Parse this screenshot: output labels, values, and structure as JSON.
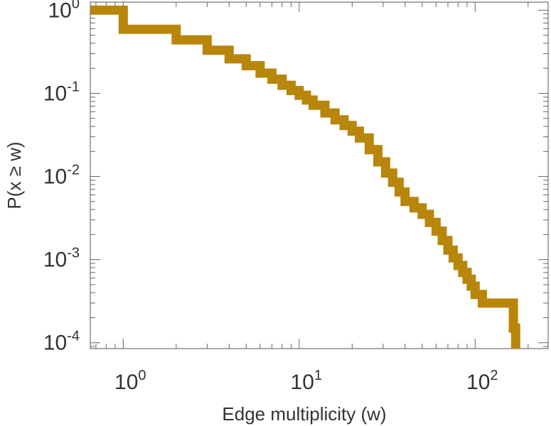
{
  "chart_data": {
    "type": "line",
    "step": true,
    "xscale": "log",
    "yscale": "log",
    "xlim": [
      0.65,
      260
    ],
    "ylim": [
      8.5e-05,
      1.25
    ],
    "xlabel": "Edge multiplicity (w)",
    "ylabel": "P(x ≥ w)",
    "x_ticks": [
      {
        "value": 1,
        "base": "10",
        "exp": "0"
      },
      {
        "value": 10,
        "base": "10",
        "exp": "1"
      },
      {
        "value": 100,
        "base": "10",
        "exp": "2"
      }
    ],
    "y_ticks": [
      {
        "value": 1,
        "base": "10",
        "exp": "0"
      },
      {
        "value": 0.1,
        "base": "10",
        "exp": "-1"
      },
      {
        "value": 0.01,
        "base": "10",
        "exp": "-2"
      },
      {
        "value": 0.001,
        "base": "10",
        "exp": "-3"
      },
      {
        "value": 0.0001,
        "base": "10",
        "exp": "-4"
      }
    ],
    "series": [
      {
        "color": "#b8860b",
        "x": [
          0.65,
          1,
          2,
          3,
          4,
          5,
          6,
          7,
          8,
          9,
          10,
          11,
          12,
          14,
          16,
          18,
          20,
          22,
          25,
          28,
          31,
          34,
          37,
          40,
          45,
          50,
          55,
          60,
          65,
          70,
          75,
          80,
          85,
          90,
          95,
          100,
          110,
          130,
          165,
          170
        ],
        "y": [
          1,
          0.59,
          0.44,
          0.33,
          0.26,
          0.215,
          0.175,
          0.148,
          0.125,
          0.108,
          0.095,
          0.083,
          0.072,
          0.058,
          0.048,
          0.041,
          0.035,
          0.029,
          0.021,
          0.015,
          0.011,
          0.0085,
          0.0065,
          0.005,
          0.0042,
          0.0035,
          0.0028,
          0.0022,
          0.0017,
          0.0013,
          0.00105,
          0.00085,
          0.0007,
          0.00058,
          0.00048,
          0.00038,
          0.0003,
          0.0003,
          0.00015,
          8.5e-05
        ]
      }
    ]
  }
}
